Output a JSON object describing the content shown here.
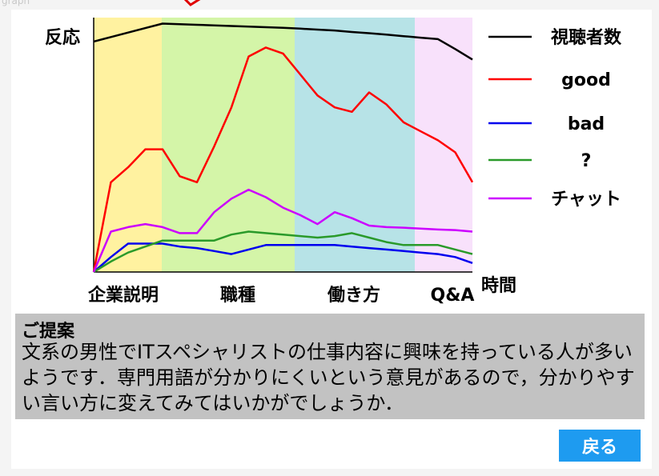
{
  "page": {
    "label": "graph"
  },
  "colors": {
    "segment_bg": [
      "#fff2a0",
      "#d4f5a8",
      "#b7e3e7",
      "#f8e1fb"
    ],
    "series": {
      "viewers": "#000000",
      "good": "#ff0000",
      "bad": "#0000ee",
      "question": "#2a9a2a",
      "chat": "#cc00ff"
    },
    "accent": "#1e9bf0"
  },
  "chart_data": {
    "type": "line",
    "ylabel": "反応",
    "xlabel": "時間",
    "segments": [
      "企業説明",
      "職種",
      "働き方",
      "Q&A"
    ],
    "x": [
      0,
      1,
      2,
      3,
      4,
      5,
      6,
      7,
      8,
      9,
      10,
      11,
      12,
      13,
      14,
      15,
      16,
      17,
      18,
      19,
      20,
      21,
      22
    ],
    "series": [
      {
        "name": "視聴者数",
        "key": "viewers",
        "values": [
          7.7,
          7.85,
          8.0,
          8.15,
          8.3,
          8.28,
          8.26,
          8.24,
          8.22,
          8.2,
          8.18,
          8.16,
          8.13,
          8.1,
          8.07,
          8.02,
          7.98,
          7.93,
          7.88,
          7.83,
          7.78,
          7.45,
          7.1
        ]
      },
      {
        "name": "good",
        "key": "good",
        "values": [
          0,
          3.0,
          3.5,
          4.1,
          4.1,
          3.2,
          3.0,
          4.2,
          5.5,
          7.2,
          7.5,
          7.3,
          6.6,
          5.9,
          5.5,
          5.35,
          6.0,
          5.6,
          5.0,
          4.7,
          4.4,
          4.0,
          3.0
        ]
      },
      {
        "name": "bad",
        "key": "bad",
        "values": [
          0,
          0.5,
          0.95,
          0.95,
          0.95,
          0.85,
          0.8,
          0.7,
          0.6,
          0.75,
          0.9,
          0.9,
          0.9,
          0.9,
          0.9,
          0.85,
          0.8,
          0.75,
          0.7,
          0.65,
          0.6,
          0.5,
          0.3
        ]
      },
      {
        "name": "?",
        "key": "question",
        "values": [
          0,
          0.35,
          0.65,
          0.85,
          1.05,
          1.05,
          1.05,
          1.05,
          1.25,
          1.35,
          1.3,
          1.25,
          1.2,
          1.15,
          1.2,
          1.3,
          1.15,
          1.0,
          0.9,
          0.9,
          0.9,
          0.75,
          0.6
        ]
      },
      {
        "name": "チャット",
        "key": "chat",
        "values": [
          0,
          1.35,
          1.5,
          1.6,
          1.5,
          1.3,
          1.3,
          2.0,
          2.45,
          2.75,
          2.5,
          2.15,
          1.9,
          1.6,
          2.0,
          1.8,
          1.55,
          1.5,
          1.48,
          1.45,
          1.42,
          1.4,
          1.35
        ]
      }
    ]
  },
  "proposal": {
    "title": "ご提案",
    "body": "文系の男性でITスペシャリストの仕事内容に興味を持っている人が多いようです．専門用語が分かりにくいという意見があるので，分かりやすい言い方に変えてみてはいかがでしょうか．"
  },
  "back_button": {
    "label": "戻る"
  },
  "icons": {
    "deco": "red-check-mark"
  }
}
